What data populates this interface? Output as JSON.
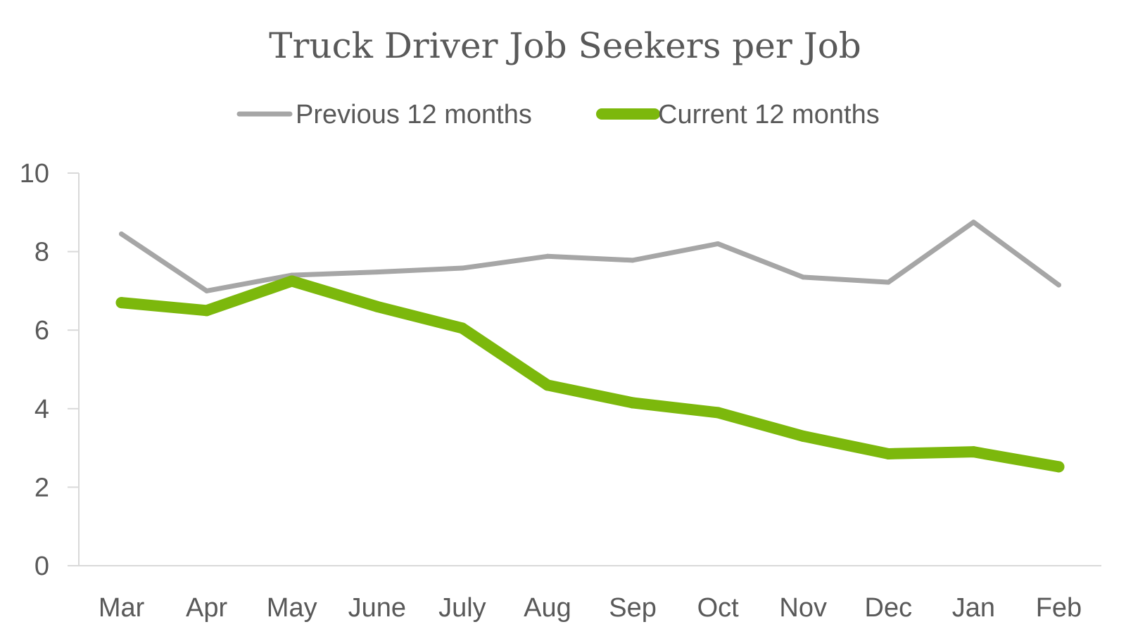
{
  "chart_data": {
    "type": "line",
    "title": "Truck Driver Job Seekers per Job",
    "xlabel": "",
    "ylabel": "",
    "categories": [
      "Mar",
      "Apr",
      "May",
      "June",
      "July",
      "Aug",
      "Sep",
      "Oct",
      "Nov",
      "Dec",
      "Jan",
      "Feb"
    ],
    "ylim": [
      0,
      10
    ],
    "yticks": [
      "0",
      "2",
      "4",
      "6",
      "8",
      "10"
    ],
    "grid": false,
    "legend_position": "top-center",
    "series": [
      {
        "name": "Previous 12 months",
        "color": "#a6a6a6",
        "values": [
          8.45,
          7.0,
          7.4,
          7.48,
          7.58,
          7.88,
          7.78,
          8.2,
          7.35,
          7.22,
          8.75,
          7.15
        ]
      },
      {
        "name": "Current 12 months",
        "color": "#7cb80c",
        "values": [
          6.7,
          6.5,
          7.25,
          6.6,
          6.05,
          4.6,
          4.15,
          3.9,
          3.3,
          2.85,
          2.9,
          2.52
        ]
      }
    ]
  }
}
